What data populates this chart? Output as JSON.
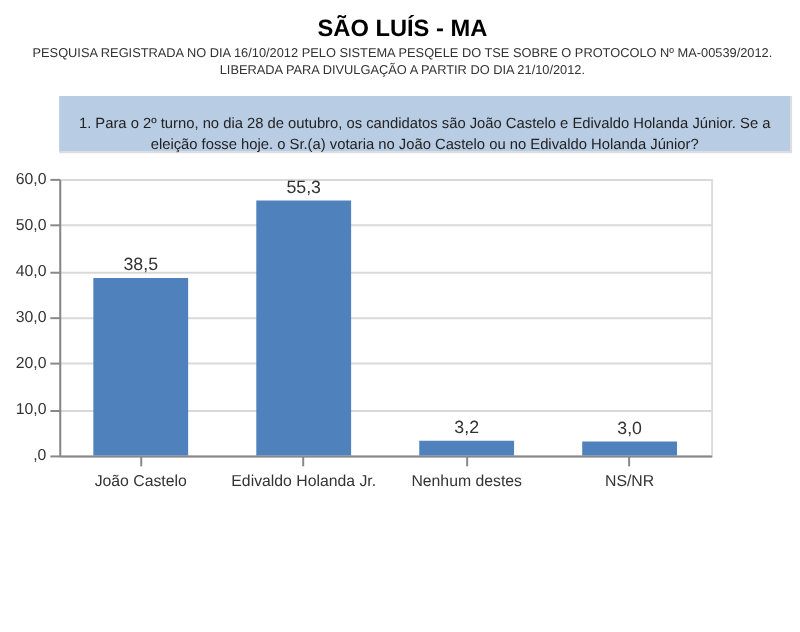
{
  "chart_data": {
    "type": "bar",
    "title": "SÃO LUÍS - MA",
    "subtitle": [
      "PESQUISA REGISTRADA NO DIA 16/10/2012 PELO SISTEMA PESQELE DO TSE SOBRE O PROTOCOLO Nº MA-00539/2012.",
      "LIBERADA PARA DIVULGAÇÃO A PARTIR DO DIA 21/10/2012."
    ],
    "annotations": [
      "1. Para o 2º turno, no dia 28 de outubro, os candidatos são João Castelo e Edivaldo Holanda Júnior. Se a eleição fosse hoje. o Sr.(a) votaria no João Castelo ou no Edivaldo Holanda Júnior?"
    ],
    "categories": [
      "João Castelo",
      "Edivaldo Holanda Jr.",
      "Nenhum destes",
      "NS/NR"
    ],
    "values": [
      38.5,
      55.3,
      3.2,
      3.0
    ],
    "value_labels": [
      "38,5",
      "55,3",
      "3,2",
      "3,0"
    ],
    "color": "#4f81bd",
    "ylim": [
      0,
      60
    ],
    "yticks": [
      {
        "value": 0,
        "label": ",0"
      },
      {
        "value": 10,
        "label": "10,0"
      },
      {
        "value": 20,
        "label": "20,0"
      },
      {
        "value": 30,
        "label": "30,0"
      },
      {
        "value": 40,
        "label": "40,0"
      },
      {
        "value": 50,
        "label": "50,0"
      },
      {
        "value": 60,
        "label": "60,0"
      }
    ],
    "grid": "y"
  }
}
